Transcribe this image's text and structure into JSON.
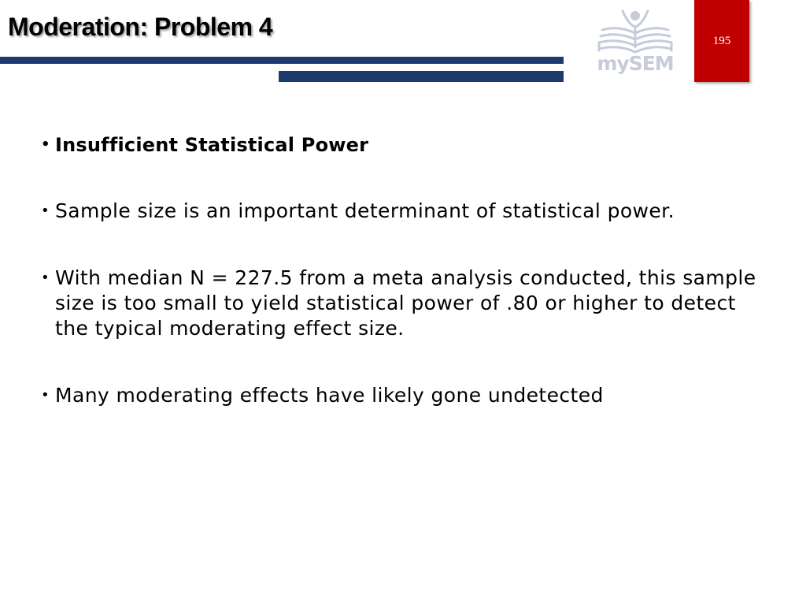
{
  "slide": {
    "title": "Moderation: Problem 4",
    "page_number": "195"
  },
  "logo": {
    "text": "mySEM",
    "icon": "open-book-person-icon"
  },
  "colors": {
    "rule": "#1c3a6e",
    "page_box": "#c00000",
    "logo": "#c5cbd9"
  },
  "bullets": [
    {
      "text": "Insufficient Statistical Power",
      "bold": true
    },
    {
      "text": "Sample size is an important determinant of statistical power.",
      "bold": false
    },
    {
      "text": "With median N = 227.5 from a meta analysis conducted, this sample size is too small to yield statistical power of .80 or higher to detect the typical moderating effect size.",
      "bold": false
    },
    {
      "text": "Many moderating effects have likely gone undetected",
      "bold": false
    }
  ]
}
